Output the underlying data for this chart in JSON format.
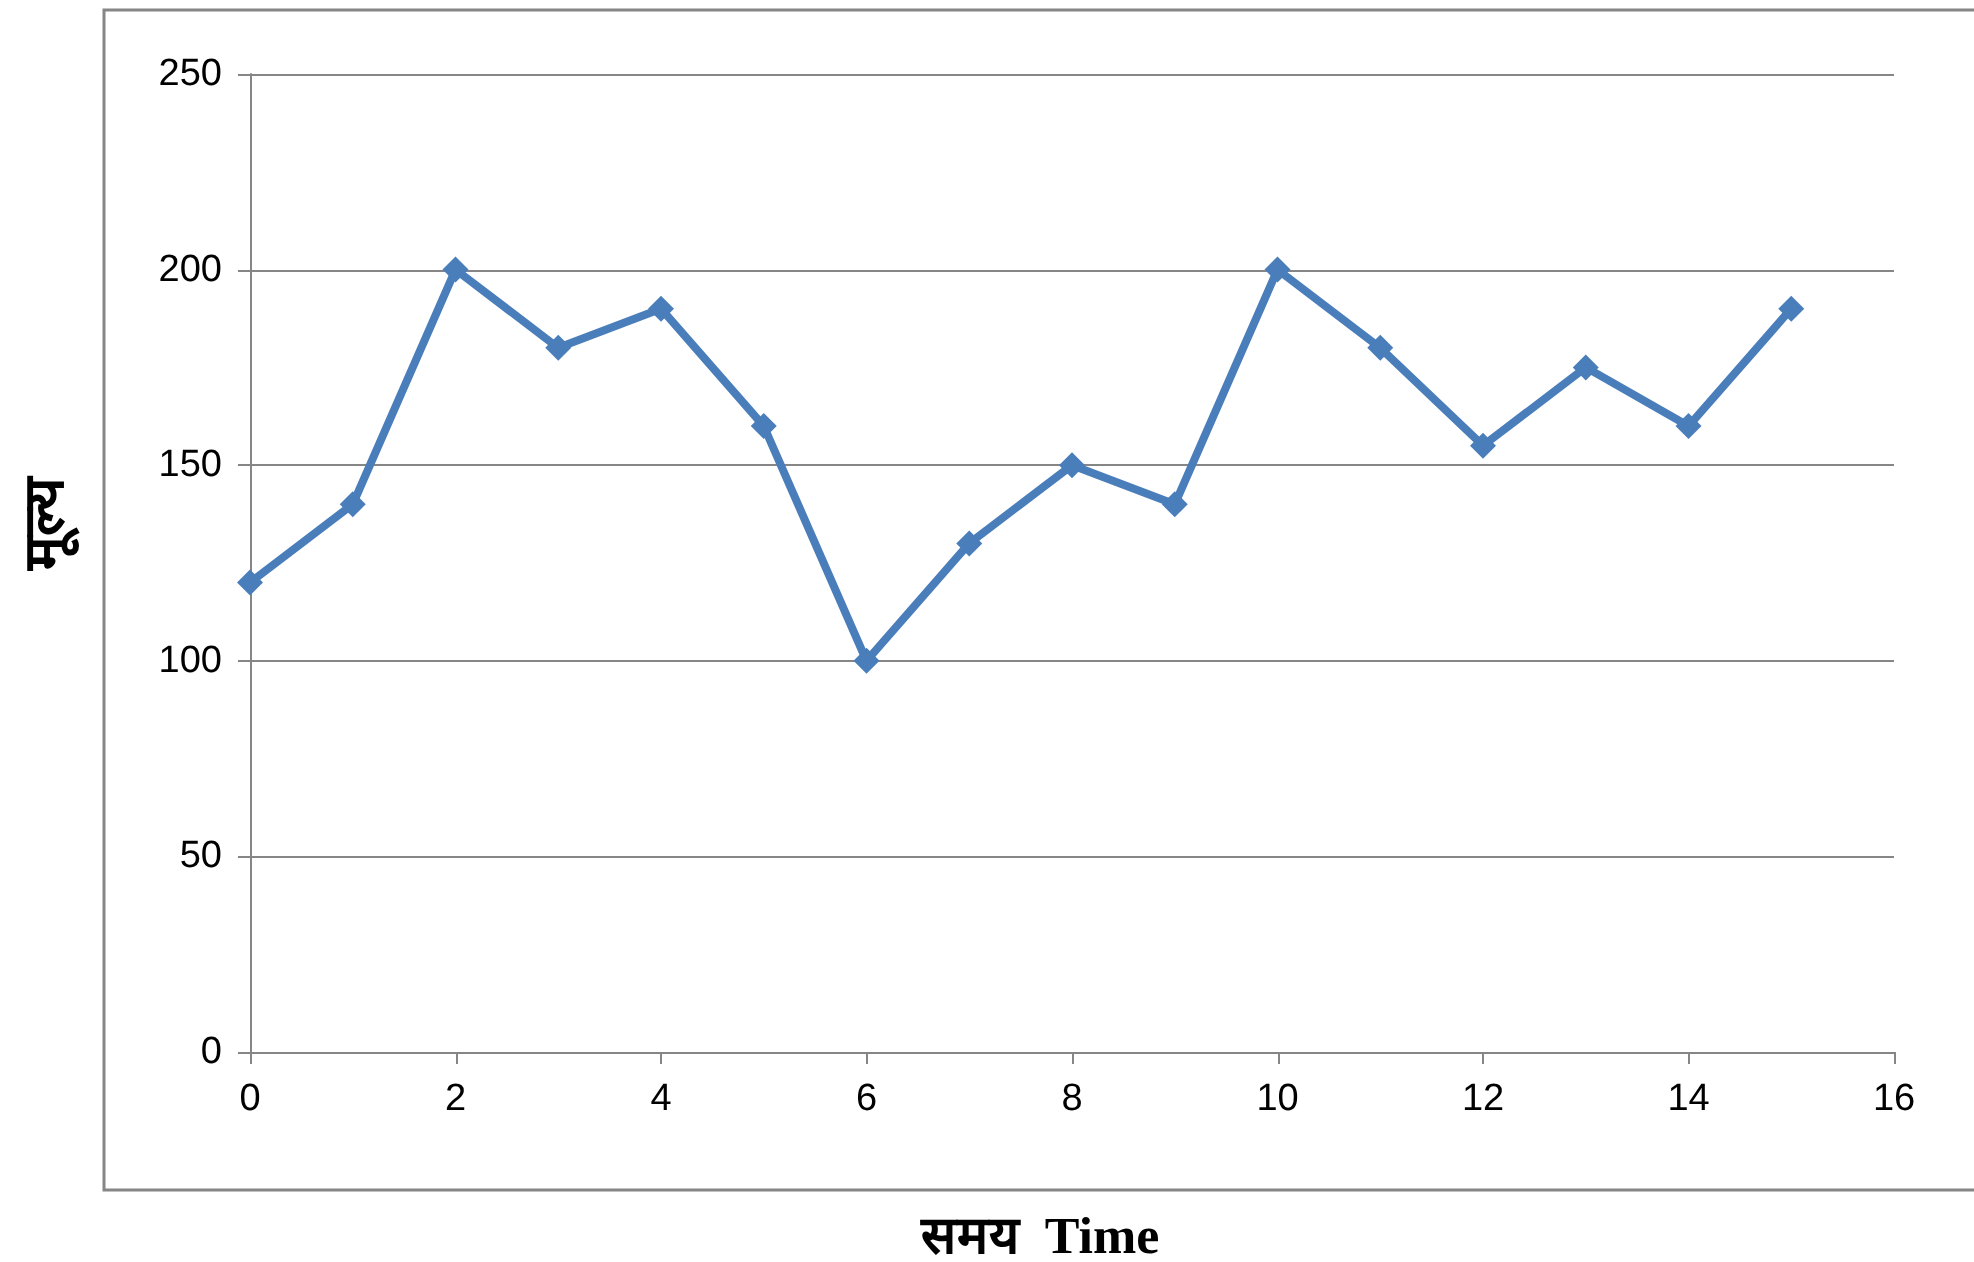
{
  "chart_data": {
    "type": "line",
    "xlabel": "समय  Time",
    "ylabel": "मूल्य",
    "x": [
      0,
      1,
      2,
      3,
      4,
      5,
      6,
      7,
      8,
      9,
      10,
      11,
      12,
      13,
      14,
      15
    ],
    "series": [
      {
        "color": "#4a7ebb",
        "values": [
          120,
          140,
          200,
          180,
          190,
          160,
          100,
          130,
          150,
          140,
          200,
          180,
          155,
          175,
          160,
          190
        ]
      }
    ],
    "xlim": [
      0,
      16
    ],
    "xticks": [
      0,
      2,
      4,
      6,
      8,
      10,
      12,
      14,
      16
    ],
    "ylim": [
      0,
      250
    ],
    "yticks": [
      0,
      50,
      100,
      150,
      200,
      250
    ],
    "grid": "y",
    "marker": "diamond",
    "line_style": "solid"
  }
}
